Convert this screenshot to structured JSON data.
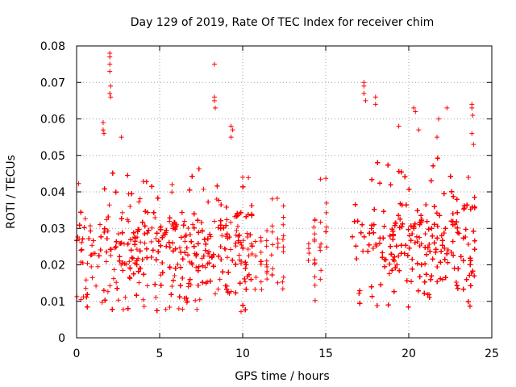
{
  "chart_data": {
    "type": "scatter",
    "title": "Day 129 of 2019, Rate Of TEC Index for receiver chim",
    "xlabel": "GPS time / hours",
    "ylabel": "ROTI / TECUs",
    "xlim": [
      0,
      25
    ],
    "ylim": [
      0,
      0.08
    ],
    "xticks": [
      "0",
      "5",
      "10",
      "15",
      "20",
      "25"
    ],
    "yticks": [
      "0",
      "0.01",
      "0.02",
      "0.03",
      "0.04",
      "0.05",
      "0.06",
      "0.07",
      "0.08"
    ],
    "grid": true,
    "marker": "+",
    "color": "#ff0000",
    "segments": [
      {
        "x_start": 0.0,
        "x_end": 10.6,
        "y_low": 0.004,
        "y_center": 0.019,
        "y_high": 0.047,
        "density": "dense"
      },
      {
        "x_start": 10.6,
        "x_end": 12.6,
        "y_low": 0.011,
        "y_center": 0.02,
        "y_high": 0.04,
        "density": "sparse"
      },
      {
        "x_start": 13.8,
        "x_end": 15.2,
        "y_low": 0.007,
        "y_center": 0.02,
        "y_high": 0.046,
        "density": "sparse"
      },
      {
        "x_start": 16.6,
        "x_end": 24.0,
        "y_low": 0.005,
        "y_center": 0.02,
        "y_high": 0.05,
        "density": "dense"
      }
    ],
    "outliers": [
      {
        "x": 2.0,
        "y": 0.078
      },
      {
        "x": 2.0,
        "y": 0.077
      },
      {
        "x": 2.0,
        "y": 0.075
      },
      {
        "x": 2.0,
        "y": 0.073
      },
      {
        "x": 2.05,
        "y": 0.069
      },
      {
        "x": 2.0,
        "y": 0.067
      },
      {
        "x": 2.05,
        "y": 0.066
      },
      {
        "x": 1.6,
        "y": 0.059
      },
      {
        "x": 1.6,
        "y": 0.057
      },
      {
        "x": 1.65,
        "y": 0.056
      },
      {
        "x": 2.7,
        "y": 0.055
      },
      {
        "x": 8.3,
        "y": 0.075
      },
      {
        "x": 8.3,
        "y": 0.066
      },
      {
        "x": 8.3,
        "y": 0.065
      },
      {
        "x": 8.35,
        "y": 0.063
      },
      {
        "x": 9.3,
        "y": 0.058
      },
      {
        "x": 9.4,
        "y": 0.057
      },
      {
        "x": 9.3,
        "y": 0.055
      },
      {
        "x": 17.3,
        "y": 0.07
      },
      {
        "x": 17.3,
        "y": 0.069
      },
      {
        "x": 17.3,
        "y": 0.067
      },
      {
        "x": 17.4,
        "y": 0.065
      },
      {
        "x": 18.0,
        "y": 0.064
      },
      {
        "x": 18.0,
        "y": 0.066
      },
      {
        "x": 20.3,
        "y": 0.063
      },
      {
        "x": 20.4,
        "y": 0.062
      },
      {
        "x": 22.3,
        "y": 0.063
      },
      {
        "x": 23.8,
        "y": 0.064
      },
      {
        "x": 23.8,
        "y": 0.063
      },
      {
        "x": 23.85,
        "y": 0.061
      },
      {
        "x": 23.8,
        "y": 0.056
      },
      {
        "x": 21.8,
        "y": 0.06
      },
      {
        "x": 19.4,
        "y": 0.058
      },
      {
        "x": 20.6,
        "y": 0.057
      },
      {
        "x": 21.7,
        "y": 0.055
      },
      {
        "x": 23.9,
        "y": 0.053
      }
    ]
  }
}
